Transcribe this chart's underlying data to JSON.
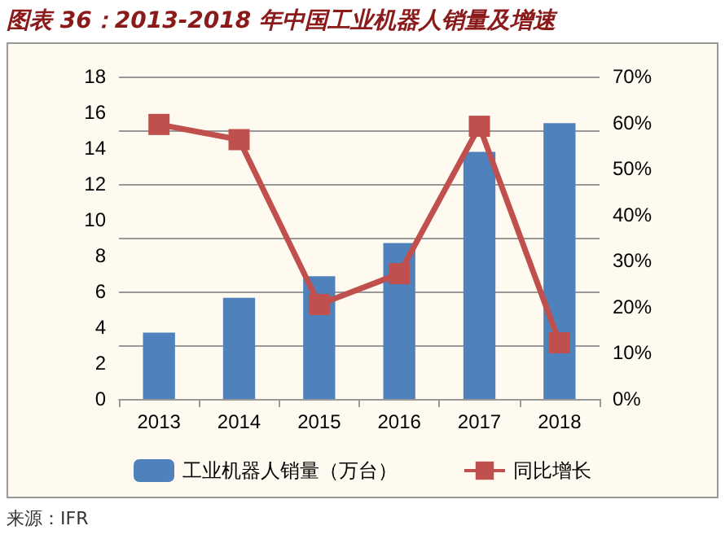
{
  "chart_data": {
    "type": "bar",
    "title": "图表 36：2013-2018 年中国工业机器人销量及增速",
    "categories": [
      "2013",
      "2014",
      "2015",
      "2016",
      "2017",
      "2018"
    ],
    "series": [
      {
        "name": "工业机器人销量（万台）",
        "color": "#4f81bd",
        "values": [
          3.7,
          5.65,
          6.85,
          8.7,
          13.8,
          15.4
        ]
      },
      {
        "name": "同比增长",
        "type": "line",
        "axis": "y2",
        "color": "#c0504d",
        "marker": "square",
        "values": [
          59.6,
          56.3,
          20.5,
          27.2,
          59.2,
          12.2
        ]
      }
    ],
    "ylim": [
      0,
      18
    ],
    "yticks": [
      0,
      2,
      4,
      6,
      8,
      10,
      12,
      14,
      16,
      18
    ],
    "y2lim": [
      0,
      70
    ],
    "y2ticks": [
      {
        "value": 0,
        "label": "0%"
      },
      {
        "value": 10,
        "label": "10%"
      },
      {
        "value": 20,
        "label": "20%"
      },
      {
        "value": 30,
        "label": "30%"
      },
      {
        "value": 40,
        "label": "40%"
      },
      {
        "value": 50,
        "label": "50%"
      },
      {
        "value": 60,
        "label": "60%"
      },
      {
        "value": 70,
        "label": "70%"
      }
    ],
    "grid": "y",
    "legend": "bottom",
    "annotations": [
      "来源：IFR"
    ]
  }
}
